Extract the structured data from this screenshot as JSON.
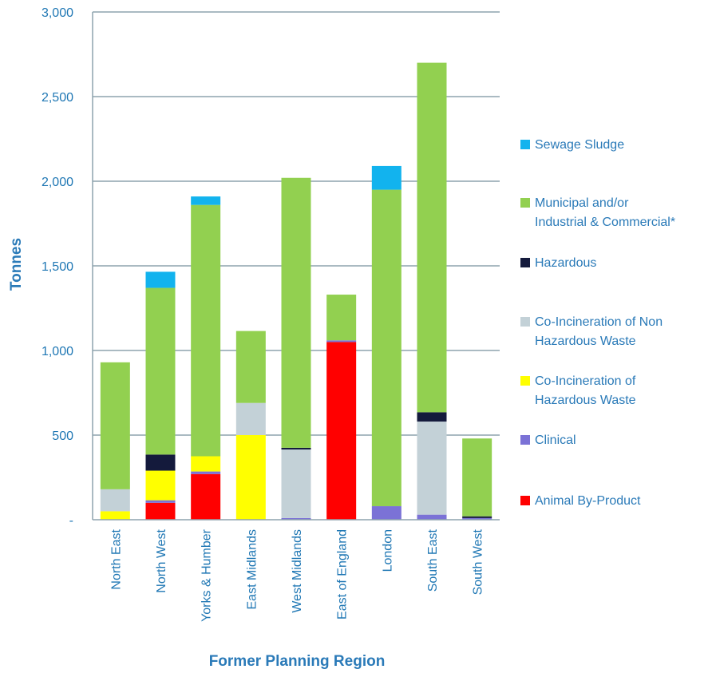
{
  "chart_data": {
    "type": "bar",
    "stacked": true,
    "xlabel": "Former Planning Region",
    "ylabel": "Tonnes",
    "ylim": [
      0,
      3000
    ],
    "yticks": [
      0,
      500,
      1000,
      1500,
      2000,
      2500,
      3000
    ],
    "ytick_labels": [
      "-",
      "500",
      "1,000",
      "1,500",
      "2,000",
      "2,500",
      "3,000"
    ],
    "grid": true,
    "legend_position": "right",
    "categories": [
      "North East",
      "North West",
      "Yorks & Humber",
      "East Midlands",
      "West Midlands",
      "East of England",
      "London",
      "South East",
      "South West"
    ],
    "series": [
      {
        "name": "Animal By-Product",
        "color": "#ff0000",
        "values": [
          0,
          100,
          270,
          0,
          0,
          1050,
          0,
          0,
          0
        ]
      },
      {
        "name": "Clinical",
        "color": "#7b72d6",
        "values": [
          0,
          15,
          15,
          0,
          10,
          10,
          80,
          30,
          10
        ]
      },
      {
        "name": "Co-Incineration of Hazardous Waste",
        "color": "#ffff00",
        "values": [
          50,
          175,
          90,
          500,
          0,
          0,
          0,
          0,
          0
        ]
      },
      {
        "name": "Co-Incineration of Non Hazardous Waste",
        "color": "#c3d1d7",
        "values": [
          130,
          0,
          0,
          190,
          405,
          0,
          0,
          550,
          0
        ]
      },
      {
        "name": "Hazardous",
        "color": "#141a3c",
        "values": [
          0,
          95,
          0,
          0,
          10,
          0,
          0,
          55,
          10
        ]
      },
      {
        "name": "Municipal and/or Industrial & Commercial*",
        "color": "#92d050",
        "values": [
          750,
          985,
          1485,
          425,
          1595,
          270,
          1870,
          2065,
          460
        ]
      },
      {
        "name": "Sewage Sludge",
        "color": "#12b3ee",
        "values": [
          0,
          95,
          50,
          0,
          0,
          0,
          140,
          0,
          0
        ]
      }
    ],
    "legend_order": [
      "Sewage Sludge",
      "Municipal and/or Industrial & Commercial*",
      "Hazardous",
      "Co-Incineration of Non Hazardous Waste",
      "Co-Incineration of Hazardous Waste",
      "Clinical",
      "Animal By-Product"
    ],
    "legend_lines": {
      "Sewage Sludge": [
        "Sewage Sludge"
      ],
      "Municipal and/or Industrial & Commercial*": [
        "Municipal and/or",
        "Industrial & Commercial*"
      ],
      "Hazardous": [
        "Hazardous"
      ],
      "Co-Incineration of Non Hazardous Waste": [
        "Co-Incineration of Non",
        "Hazardous Waste"
      ],
      "Co-Incineration of Hazardous Waste": [
        "Co-Incineration of",
        "Hazardous Waste"
      ],
      "Clinical": [
        "Clinical"
      ],
      "Animal By-Product": [
        "Animal By-Product"
      ]
    }
  }
}
